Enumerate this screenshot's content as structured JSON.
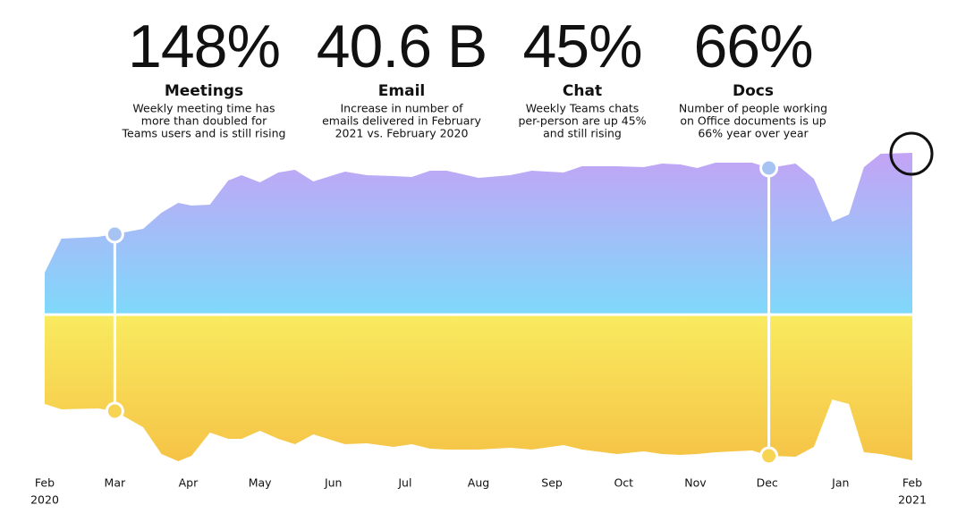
{
  "stats": [
    {
      "value": "148%",
      "title": "Meetings",
      "lines": [
        "Weekly meeting time has",
        "more than doubled for",
        "Teams users and is still rising"
      ]
    },
    {
      "value": "40.6 B",
      "title": "Email",
      "lines": [
        "Increase in number of",
        "emails delivered in February",
        "2021 vs. February 2020"
      ]
    },
    {
      "value": "45%",
      "title": "Chat",
      "lines": [
        "Weekly Teams chats",
        "per-person are up 45%",
        "and still rising"
      ]
    },
    {
      "value": "66%",
      "title": "Docs",
      "lines": [
        "Number of people working",
        "on Office documents is up",
        "66% year over year"
      ]
    }
  ],
  "chart_data": {
    "type": "area",
    "x": [
      0,
      1.0,
      3.2,
      4.2,
      5.9,
      7.0,
      8.0,
      8.8,
      9.9,
      11.0,
      11.8,
      12.9,
      14.0,
      15.0,
      16.1,
      18.0,
      19.3,
      20.9,
      22.0,
      23.1,
      24.1,
      26.0,
      27.9,
      29.2,
      31.1,
      32.2,
      34.3,
      35.9,
      37.0,
      38.1,
      39.1,
      40.2,
      42.4,
      43.4,
      45.0,
      46.1,
      47.2,
      48.2,
      49.1,
      50.1,
      52.0
    ],
    "series": [
      {
        "color": [
          "#c4a3f5",
          "#7fd9fb"
        ],
        "values": [
          47,
          85,
          87,
          90,
          96,
          114,
          125,
          122,
          123,
          150,
          156,
          148,
          159,
          162,
          149,
          160,
          156,
          155,
          154,
          161,
          161,
          153,
          156,
          161,
          159,
          166,
          166,
          165,
          169,
          168,
          164,
          170,
          170,
          164,
          169,
          152,
          104,
          112,
          165,
          180,
          181
        ]
      },
      {
        "color": [
          "#f9eb60",
          "#f5c346"
        ],
        "values": [
          -100,
          -106,
          -105,
          -108,
          -126,
          -156,
          -164,
          -158,
          -132,
          -139,
          -139,
          -130,
          -139,
          -145,
          -134,
          -145,
          -144,
          -148,
          -145,
          -150,
          -151,
          -151,
          -149,
          -151,
          -146,
          -151,
          -156,
          -153,
          -156,
          -157,
          -156,
          -154,
          -152,
          -158,
          -159,
          -148,
          -95,
          -100,
          -154,
          -156,
          -163
        ]
      }
    ],
    "markers_x": [
      4.2,
      43.4
    ],
    "xlim": [
      0,
      52
    ],
    "ylim": [
      -200,
      200
    ],
    "xticks": [
      {
        "value": 0,
        "label": "Feb"
      },
      {
        "value": 4.2,
        "label": "Mar"
      },
      {
        "value": 8.6,
        "label": "Apr"
      },
      {
        "value": 12.9,
        "label": "May"
      },
      {
        "value": 17.3,
        "label": "Jun"
      },
      {
        "value": 21.6,
        "label": "Jul"
      },
      {
        "value": 26,
        "label": "Aug"
      },
      {
        "value": 30.4,
        "label": "Sep"
      },
      {
        "value": 34.7,
        "label": "Oct"
      },
      {
        "value": 39,
        "label": "Nov"
      },
      {
        "value": 43.3,
        "label": "Dec"
      },
      {
        "value": 47.7,
        "label": "Jan"
      },
      {
        "value": 52,
        "label": "Feb"
      }
    ],
    "year_start": "2020",
    "year_end": "2021"
  }
}
